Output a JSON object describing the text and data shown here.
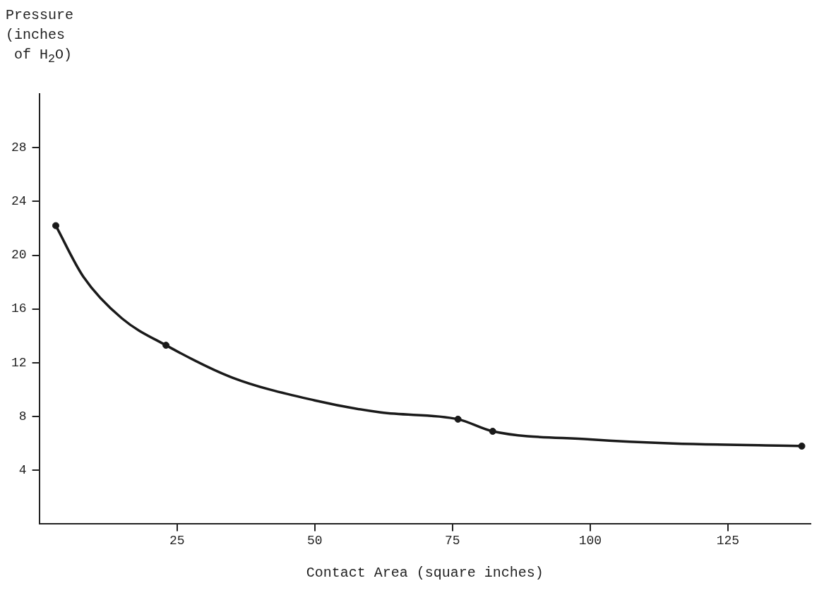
{
  "chart_data": {
    "type": "line",
    "xlabel": "Contact Area (square inches)",
    "ylabel": "Pressure\n(inches\n of H$_{2}$O)",
    "xlim": [
      0,
      140
    ],
    "xticks": [
      25,
      50,
      75,
      100,
      125
    ],
    "ylim": [
      0,
      32
    ],
    "yticks": [
      4,
      8,
      12,
      16,
      20,
      24,
      28
    ],
    "grid": false,
    "legend": false,
    "series": [
      {
        "color": "#1a1a1a",
        "marker": "none",
        "x": [
          3,
          8,
          15,
          23,
          35,
          50,
          62,
          76,
          82.3,
          100,
          115,
          138.4
        ],
        "values": [
          22.2,
          18.4,
          15.3,
          13.3,
          10.9,
          9.2,
          8.3,
          7.8,
          6.9,
          6.3,
          6.0,
          5.8
        ]
      },
      {
        "type": "scatter",
        "color": "#1a1a1a",
        "marker": "circle",
        "x": [
          3,
          23,
          76,
          82.3,
          138.4
        ],
        "values": [
          22.2,
          13.3,
          7.8,
          6.9,
          5.8
        ]
      }
    ]
  }
}
